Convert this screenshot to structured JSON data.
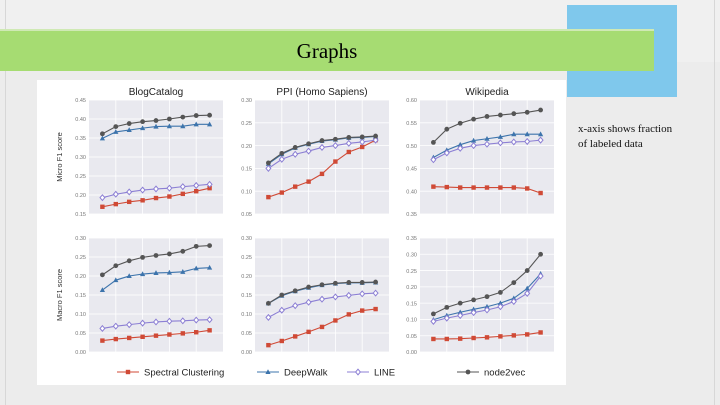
{
  "slide": {
    "title": "Graphs",
    "note": "x-axis shows fraction of labeled data"
  },
  "chart_data": [
    {
      "type": "line",
      "title": "BlogCatalog",
      "ylabel": "Micro F1 score",
      "ylim": [
        0.15,
        0.45
      ],
      "yticks": [
        "0.15",
        "0.20",
        "0.25",
        "0.30",
        "0.35",
        "0.40",
        "0.45"
      ],
      "x": [
        0.1,
        0.2,
        0.3,
        0.4,
        0.5,
        0.6,
        0.7,
        0.8,
        0.9
      ],
      "series": [
        {
          "name": "Spectral Clustering",
          "values": [
            0.169,
            0.176,
            0.182,
            0.186,
            0.192,
            0.196,
            0.203,
            0.21,
            0.218
          ]
        },
        {
          "name": "DeepWalk",
          "values": [
            0.349,
            0.366,
            0.371,
            0.376,
            0.38,
            0.381,
            0.381,
            0.386,
            0.386
          ]
        },
        {
          "name": "LINE",
          "values": [
            0.193,
            0.202,
            0.208,
            0.213,
            0.216,
            0.218,
            0.222,
            0.225,
            0.228
          ]
        },
        {
          "name": "node2vec",
          "values": [
            0.361,
            0.38,
            0.388,
            0.393,
            0.396,
            0.4,
            0.405,
            0.409,
            0.41
          ]
        }
      ]
    },
    {
      "type": "line",
      "title": "PPI (Homo Sapiens)",
      "ylim": [
        0.05,
        0.3
      ],
      "yticks": [
        "0.05",
        "0.10",
        "0.15",
        "0.20",
        "0.25",
        "0.30"
      ],
      "x": [
        0.1,
        0.2,
        0.3,
        0.4,
        0.5,
        0.6,
        0.7,
        0.8,
        0.9
      ],
      "series": [
        {
          "name": "Spectral Clustering",
          "values": [
            0.087,
            0.097,
            0.11,
            0.121,
            0.138,
            0.165,
            0.186,
            0.197,
            0.212
          ]
        },
        {
          "name": "DeepWalk",
          "values": [
            0.16,
            0.181,
            0.195,
            0.203,
            0.21,
            0.213,
            0.217,
            0.218,
            0.22
          ]
        },
        {
          "name": "LINE",
          "values": [
            0.15,
            0.17,
            0.181,
            0.188,
            0.196,
            0.2,
            0.205,
            0.208,
            0.212
          ]
        },
        {
          "name": "node2vec",
          "values": [
            0.162,
            0.183,
            0.196,
            0.204,
            0.211,
            0.214,
            0.218,
            0.219,
            0.221
          ]
        }
      ]
    },
    {
      "type": "line",
      "title": "Wikipedia",
      "ylim": [
        0.35,
        0.6
      ],
      "yticks": [
        "0.35",
        "0.40",
        "0.45",
        "0.50",
        "0.55",
        "0.60"
      ],
      "x": [
        0.1,
        0.2,
        0.3,
        0.4,
        0.5,
        0.6,
        0.7,
        0.8,
        0.9
      ],
      "series": [
        {
          "name": "Spectral Clustering",
          "values": [
            0.41,
            0.409,
            0.408,
            0.408,
            0.408,
            0.408,
            0.408,
            0.406,
            0.396
          ]
        },
        {
          "name": "DeepWalk",
          "values": [
            0.474,
            0.49,
            0.502,
            0.511,
            0.515,
            0.519,
            0.525,
            0.525,
            0.525
          ]
        },
        {
          "name": "LINE",
          "values": [
            0.469,
            0.484,
            0.494,
            0.5,
            0.503,
            0.506,
            0.508,
            0.509,
            0.512
          ]
        },
        {
          "name": "node2vec",
          "values": [
            0.507,
            0.536,
            0.549,
            0.558,
            0.564,
            0.567,
            0.57,
            0.573,
            0.578
          ]
        }
      ]
    },
    {
      "type": "line",
      "ylabel": "Macro F1 score",
      "ylim": [
        0.0,
        0.3
      ],
      "yticks": [
        "0.00",
        "0.05",
        "0.10",
        "0.15",
        "0.20",
        "0.25",
        "0.30"
      ],
      "x": [
        0.1,
        0.2,
        0.3,
        0.4,
        0.5,
        0.6,
        0.7,
        0.8,
        0.9
      ],
      "series": [
        {
          "name": "Spectral Clustering",
          "values": [
            0.03,
            0.034,
            0.037,
            0.04,
            0.043,
            0.046,
            0.049,
            0.052,
            0.057
          ]
        },
        {
          "name": "DeepWalk",
          "values": [
            0.163,
            0.189,
            0.2,
            0.205,
            0.208,
            0.209,
            0.211,
            0.22,
            0.222
          ]
        },
        {
          "name": "LINE",
          "values": [
            0.062,
            0.068,
            0.072,
            0.076,
            0.079,
            0.081,
            0.082,
            0.084,
            0.085
          ]
        },
        {
          "name": "node2vec",
          "values": [
            0.203,
            0.227,
            0.24,
            0.249,
            0.254,
            0.258,
            0.265,
            0.278,
            0.28
          ]
        }
      ]
    },
    {
      "type": "line",
      "ylim": [
        0.0,
        0.3
      ],
      "yticks": [
        "0.00",
        "0.05",
        "0.10",
        "0.15",
        "0.20",
        "0.25",
        "0.30"
      ],
      "x": [
        0.1,
        0.2,
        0.3,
        0.4,
        0.5,
        0.6,
        0.7,
        0.8,
        0.9
      ],
      "series": [
        {
          "name": "Spectral Clustering",
          "values": [
            0.018,
            0.029,
            0.041,
            0.053,
            0.066,
            0.083,
            0.099,
            0.109,
            0.113
          ]
        },
        {
          "name": "DeepWalk",
          "values": [
            0.128,
            0.148,
            0.16,
            0.169,
            0.176,
            0.18,
            0.182,
            0.182,
            0.183
          ]
        },
        {
          "name": "LINE",
          "values": [
            0.091,
            0.11,
            0.122,
            0.131,
            0.139,
            0.145,
            0.149,
            0.153,
            0.155
          ]
        },
        {
          "name": "node2vec",
          "values": [
            0.128,
            0.15,
            0.161,
            0.171,
            0.177,
            0.181,
            0.183,
            0.183,
            0.184
          ]
        }
      ]
    },
    {
      "type": "line",
      "ylim": [
        0.0,
        0.35
      ],
      "yticks": [
        "0.00",
        "0.05",
        "0.10",
        "0.15",
        "0.20",
        "0.25",
        "0.30",
        "0.35"
      ],
      "x": [
        0.1,
        0.2,
        0.3,
        0.4,
        0.5,
        0.6,
        0.7,
        0.8,
        0.9
      ],
      "series": [
        {
          "name": "Spectral Clustering",
          "values": [
            0.04,
            0.04,
            0.041,
            0.043,
            0.045,
            0.048,
            0.051,
            0.054,
            0.06
          ]
        },
        {
          "name": "DeepWalk",
          "values": [
            0.099,
            0.112,
            0.122,
            0.131,
            0.139,
            0.15,
            0.165,
            0.195,
            0.24
          ]
        },
        {
          "name": "LINE",
          "values": [
            0.094,
            0.104,
            0.112,
            0.121,
            0.129,
            0.139,
            0.155,
            0.18,
            0.233
          ]
        },
        {
          "name": "node2vec",
          "values": [
            0.117,
            0.137,
            0.15,
            0.16,
            0.17,
            0.183,
            0.213,
            0.25,
            0.3
          ]
        }
      ]
    }
  ],
  "legend": [
    "Spectral Clustering",
    "DeepWalk",
    "LINE",
    "node2vec"
  ],
  "colors": {
    "Spectral Clustering": "#d04a36",
    "DeepWalk": "#3d74ac",
    "LINE": "#8c7fd4",
    "node2vec": "#555555",
    "plot_bg": "#e9e9ef",
    "grid": "#ffffff"
  },
  "markers": {
    "Spectral Clustering": "square",
    "DeepWalk": "triangle",
    "LINE": "diamond",
    "node2vec": "circle"
  }
}
